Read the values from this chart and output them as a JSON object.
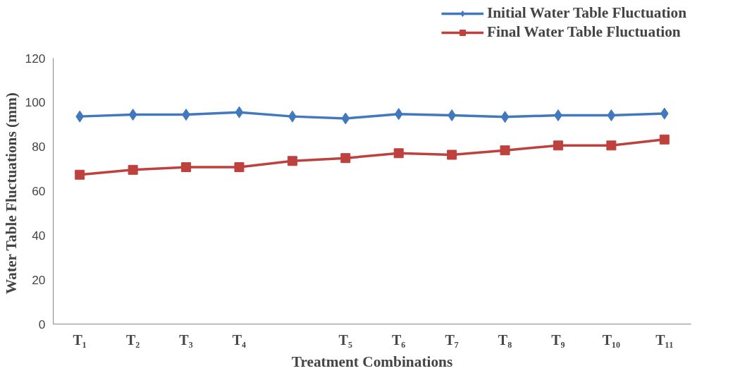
{
  "chart_data": {
    "type": "line",
    "xlabel": "Treatment Combinations",
    "ylabel": "Water Table Fluctuations  (mm)",
    "categories": [
      "T₁",
      "T₂",
      "T₃",
      "T₄",
      null,
      "T₅",
      "T₆",
      "T₇",
      "T₈",
      "T₉",
      "T₁₀",
      "T₁₁"
    ],
    "series": [
      {
        "name": "Initial Water Table Fluctuation",
        "color": "#4278bd",
        "marker": "diamond",
        "values": [
          93.7,
          94.5,
          94.5,
          95.6,
          93.7,
          92.8,
          94.8,
          94.2,
          93.5,
          94.2,
          94.2,
          95.0
        ]
      },
      {
        "name": "Final Water Table Fluctuation",
        "color": "#be413d",
        "marker": "square",
        "values": [
          67.4,
          69.6,
          70.8,
          70.8,
          73.6,
          74.9,
          77.1,
          76.4,
          78.4,
          80.6,
          80.6,
          83.3
        ]
      }
    ],
    "ylim": [
      0,
      120
    ],
    "yticks": [
      0,
      20,
      40,
      60,
      80,
      100,
      120
    ],
    "grid": false,
    "legend": "top right",
    "line_style": "solid"
  }
}
